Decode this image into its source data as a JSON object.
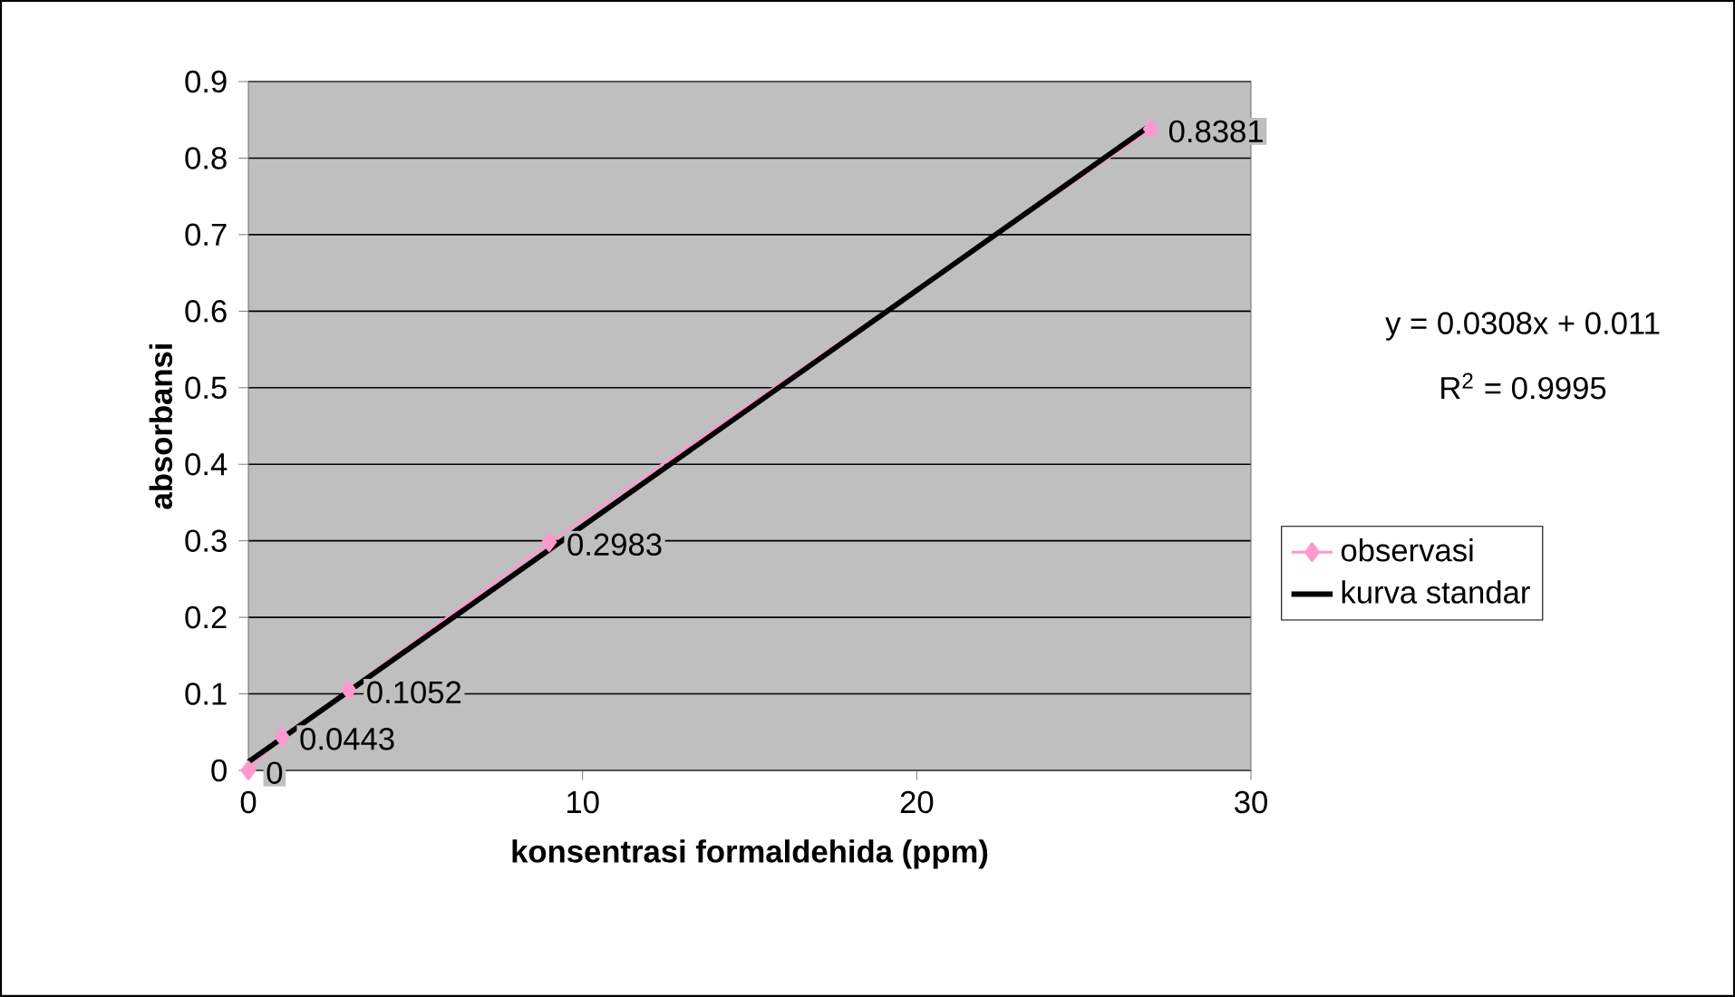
{
  "chart_data": {
    "type": "line",
    "xlabel": "konsentrasi formaldehida (ppm)",
    "ylabel": "absorbansi",
    "xlim": [
      0,
      30
    ],
    "xticks": [
      0,
      10,
      20,
      30
    ],
    "ylim": [
      0,
      0.9
    ],
    "yticks": [
      0,
      0.1,
      0.2,
      0.3,
      0.4,
      0.5,
      0.6,
      0.7,
      0.8,
      0.9
    ],
    "grid": "y",
    "legend": "right",
    "annotations": [
      "y = 0.0308x + 0.011",
      "R$^{2}$ = 0.9995"
    ],
    "series": [
      {
        "name": "observasi",
        "color": "#ff99cc",
        "marker": "diamond",
        "x": [
          0,
          1,
          3,
          9,
          27
        ],
        "values": [
          0,
          0.0443,
          0.1052,
          0.2983,
          0.8381
        ],
        "value_labels": [
          "0",
          "0.0443",
          "0.1052",
          "0.2983",
          "0.8381"
        ]
      },
      {
        "name": "kurva standar",
        "color": "#000000",
        "marker": "none",
        "x": [
          0,
          27
        ],
        "values": [
          0.011,
          0.843
        ]
      }
    ]
  }
}
